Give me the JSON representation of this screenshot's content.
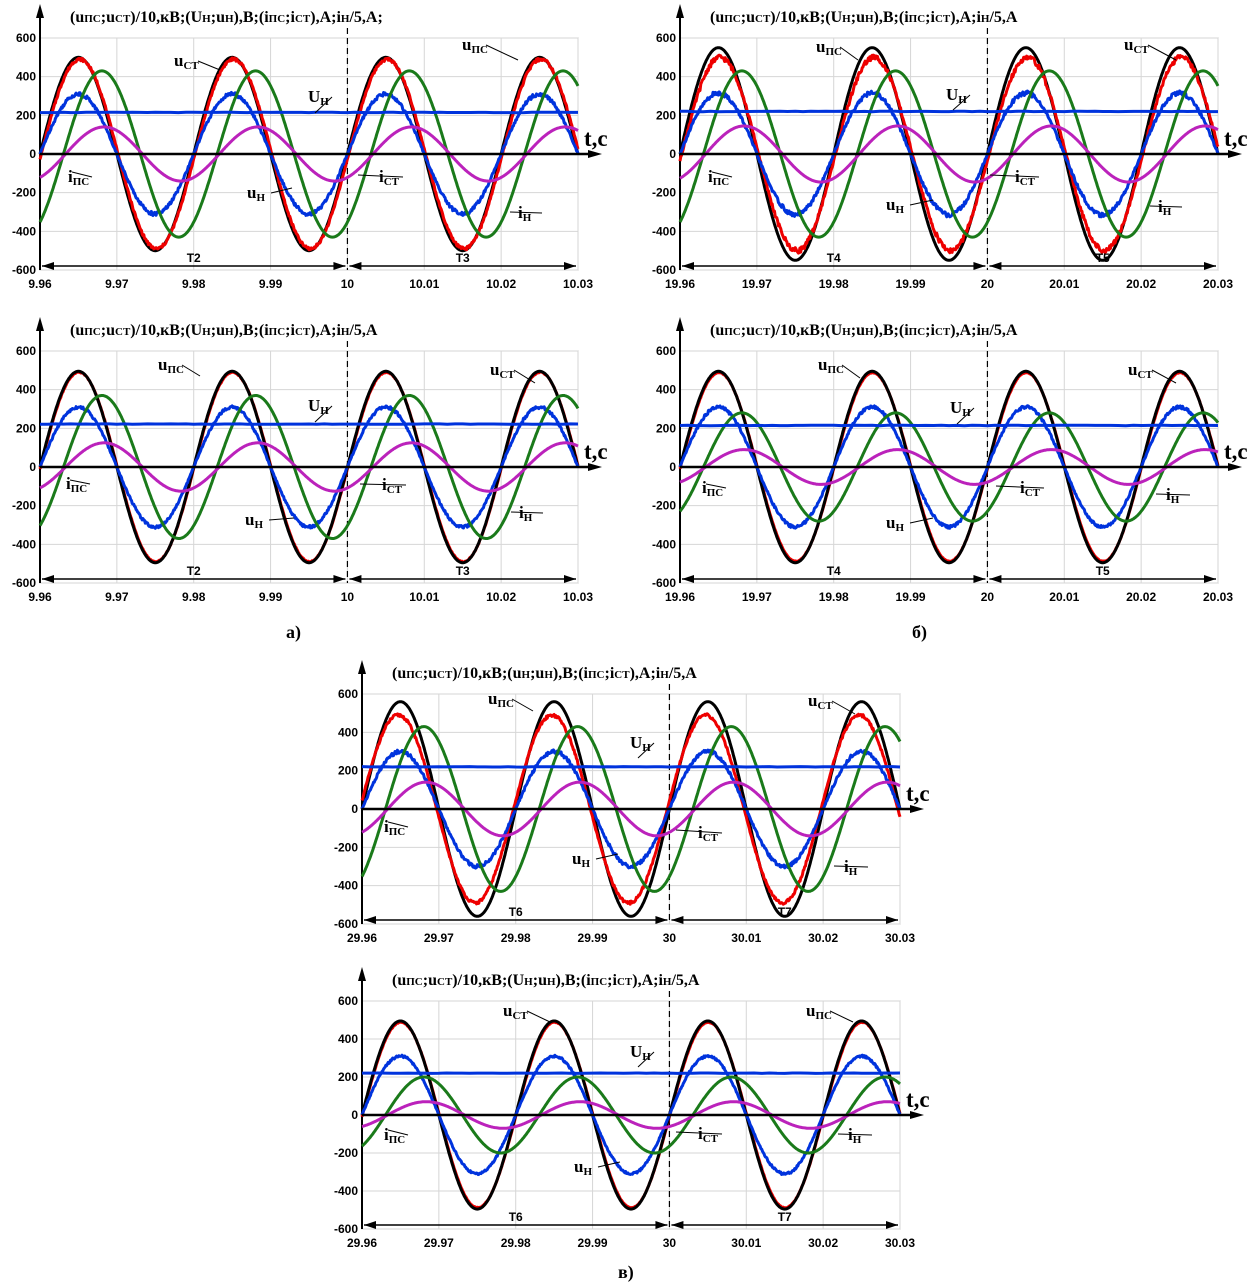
{
  "captions": {
    "a": "а)",
    "b": "б)",
    "c": "в)"
  },
  "chart_data": [
    {
      "type": "line",
      "panel": "a-top",
      "title": "(uПС;uСТ)/10,кВ;(UН;uН),В;(iПС;iСТ),А;iН/5,А;",
      "xlabel": "t,c",
      "xlim": [
        9.96,
        10.03
      ],
      "ylim": [
        -600,
        600
      ],
      "xticks": [
        "9.96",
        "9.97",
        "9.98",
        "9.99",
        "10",
        "10.01",
        "10.02",
        "10.03"
      ],
      "yticks": [
        "-600",
        "-400",
        "-200",
        "0",
        "200",
        "400",
        "600"
      ],
      "marker_x": 10,
      "periods": [
        {
          "label": "T2",
          "from": 9.96,
          "to": 10
        },
        {
          "label": "T3",
          "from": 10,
          "to": 10.03
        }
      ],
      "series": [
        {
          "color": "#000000",
          "amplitude": 500,
          "phase_deg": 0,
          "noise": 0,
          "f": 50,
          "t0": 9.96
        },
        {
          "color": "#ee0000",
          "amplitude": 490,
          "phase_deg": -3,
          "noise": 8,
          "f": 50,
          "t0": 9.96
        },
        {
          "color": "#0033dd",
          "amplitude": 310,
          "phase_deg": 0,
          "noise": 10,
          "f": 50,
          "t0": 9.96
        },
        {
          "color": "#1a7a1a",
          "amplitude": 430,
          "phase_deg": -55,
          "noise": 0,
          "f": 50,
          "t0": 9.96
        },
        {
          "color": "#bb22bb",
          "amplitude": 140,
          "phase_deg": -60,
          "noise": 0,
          "f": 50,
          "t0": 9.96
        },
        {
          "color": "#0033dd",
          "constant": 215
        }
      ],
      "annotations": [
        {
          "base": "u",
          "sub": "СТ"
        },
        {
          "base": "u",
          "sub": "ПС"
        },
        {
          "base": "U",
          "sub": "Н"
        },
        {
          "base": "i",
          "sub": "ПС"
        },
        {
          "base": "i",
          "sub": "СТ"
        },
        {
          "base": "u",
          "sub": "Н"
        },
        {
          "base": "i",
          "sub": "Н"
        }
      ]
    },
    {
      "type": "line",
      "panel": "b-top",
      "title": "(uПС;uСТ)/10,кВ;(UН;uН),В;(iПС;iСТ),А;iН/5,А",
      "xlabel": "t,c",
      "xlim": [
        19.96,
        20.03
      ],
      "ylim": [
        -600,
        600
      ],
      "xticks": [
        "19.96",
        "19.97",
        "19.98",
        "19.99",
        "20",
        "20.01",
        "20.02",
        "20.03"
      ],
      "yticks": [
        "-600",
        "-400",
        "-200",
        "0",
        "200",
        "400",
        "600"
      ],
      "marker_x": 20,
      "periods": [
        {
          "label": "T4",
          "from": 19.96,
          "to": 20
        },
        {
          "label": "T5",
          "from": 20,
          "to": 20.03
        }
      ],
      "series": [
        {
          "color": "#000000",
          "amplitude": 550,
          "phase_deg": 0,
          "noise": 0,
          "f": 50,
          "t0": 19.96
        },
        {
          "color": "#ee0000",
          "amplitude": 500,
          "phase_deg": -4,
          "noise": 14,
          "f": 50,
          "t0": 19.96
        },
        {
          "color": "#0033dd",
          "amplitude": 315,
          "phase_deg": 0,
          "noise": 12,
          "f": 50,
          "t0": 19.96
        },
        {
          "color": "#1a7a1a",
          "amplitude": 430,
          "phase_deg": -55,
          "noise": 0,
          "f": 50,
          "t0": 19.96
        },
        {
          "color": "#bb22bb",
          "amplitude": 145,
          "phase_deg": -60,
          "noise": 0,
          "f": 50,
          "t0": 19.96
        },
        {
          "color": "#0033dd",
          "constant": 220
        }
      ],
      "annotations": [
        {
          "base": "u",
          "sub": "ПС"
        },
        {
          "base": "u",
          "sub": "СТ"
        },
        {
          "base": "U",
          "sub": "Н"
        },
        {
          "base": "i",
          "sub": "ПС"
        },
        {
          "base": "i",
          "sub": "СТ"
        },
        {
          "base": "u",
          "sub": "Н"
        },
        {
          "base": "i",
          "sub": "Н"
        }
      ]
    },
    {
      "type": "line",
      "panel": "a-bottom",
      "title": "(uПС;uСТ)/10,кВ;(UН;uН),В;(iПС;iСТ),А;iН/5,А",
      "xlabel": "t,c",
      "xlim": [
        9.96,
        10.03
      ],
      "ylim": [
        -600,
        600
      ],
      "xticks": [
        "9.96",
        "9.97",
        "9.98",
        "9.99",
        "10",
        "10.01",
        "10.02",
        "10.03"
      ],
      "yticks": [
        "-600",
        "-400",
        "-200",
        "0",
        "200",
        "400",
        "600"
      ],
      "marker_x": 10,
      "periods": [
        {
          "label": "T2",
          "from": 9.96,
          "to": 10
        },
        {
          "label": "T3",
          "from": 10,
          "to": 10.03
        }
      ],
      "series": [
        {
          "color": "#ee0000",
          "amplitude": 490,
          "phase_deg": -1,
          "noise": 3,
          "f": 50,
          "t0": 9.96
        },
        {
          "color": "#000000",
          "amplitude": 495,
          "phase_deg": 0,
          "noise": 0,
          "f": 50,
          "t0": 9.96
        },
        {
          "color": "#0033dd",
          "amplitude": 310,
          "phase_deg": 0,
          "noise": 8,
          "f": 50,
          "t0": 9.96
        },
        {
          "color": "#1a7a1a",
          "amplitude": 370,
          "phase_deg": -55,
          "noise": 0,
          "f": 50,
          "t0": 9.96
        },
        {
          "color": "#bb22bb",
          "amplitude": 125,
          "phase_deg": -60,
          "noise": 0,
          "f": 50,
          "t0": 9.96
        },
        {
          "color": "#0033dd",
          "constant": 222
        }
      ],
      "annotations": [
        {
          "base": "u",
          "sub": "ПС"
        },
        {
          "base": "u",
          "sub": "СТ"
        },
        {
          "base": "U",
          "sub": "Н"
        },
        {
          "base": "i",
          "sub": "ПС"
        },
        {
          "base": "i",
          "sub": "СТ"
        },
        {
          "base": "u",
          "sub": "Н"
        },
        {
          "base": "i",
          "sub": "Н"
        }
      ]
    },
    {
      "type": "line",
      "panel": "b-bottom",
      "title": "(uПС;uСТ)/10,кВ;(UН;uН),В;(iПС;iСТ),А;iН/5,А",
      "xlabel": "t,c",
      "xlim": [
        19.96,
        20.03
      ],
      "ylim": [
        -600,
        600
      ],
      "xticks": [
        "19.96",
        "19.97",
        "19.98",
        "19.99",
        "20",
        "20.01",
        "20.02",
        "20.03"
      ],
      "yticks": [
        "-600",
        "-400",
        "-200",
        "0",
        "200",
        "400",
        "600"
      ],
      "marker_x": 20,
      "periods": [
        {
          "label": "T4",
          "from": 19.96,
          "to": 20
        },
        {
          "label": "T5",
          "from": 20,
          "to": 20.03
        }
      ],
      "series": [
        {
          "color": "#ee0000",
          "amplitude": 488,
          "phase_deg": -1,
          "noise": 2,
          "f": 50,
          "t0": 19.96
        },
        {
          "color": "#000000",
          "amplitude": 495,
          "phase_deg": 0,
          "noise": 0,
          "f": 50,
          "t0": 19.96
        },
        {
          "color": "#0033dd",
          "amplitude": 310,
          "phase_deg": 0,
          "noise": 8,
          "f": 50,
          "t0": 19.96
        },
        {
          "color": "#1a7a1a",
          "amplitude": 280,
          "phase_deg": -55,
          "noise": 0,
          "f": 50,
          "t0": 19.96
        },
        {
          "color": "#bb22bb",
          "amplitude": 90,
          "phase_deg": -60,
          "noise": 0,
          "f": 50,
          "t0": 19.96
        },
        {
          "color": "#0033dd",
          "constant": 215
        }
      ],
      "annotations": [
        {
          "base": "u",
          "sub": "ПС"
        },
        {
          "base": "u",
          "sub": "СТ"
        },
        {
          "base": "U",
          "sub": "Н"
        },
        {
          "base": "i",
          "sub": "ПС"
        },
        {
          "base": "i",
          "sub": "СТ"
        },
        {
          "base": "u",
          "sub": "Н"
        },
        {
          "base": "i",
          "sub": "Н"
        }
      ]
    },
    {
      "type": "line",
      "panel": "c-top",
      "title": "(uПС;uСТ)/10,кВ;(uН;uН),В;(iПС;iСТ),А;iН/5,А",
      "xlabel": "t,c",
      "xlim": [
        29.96,
        30.03
      ],
      "ylim": [
        -600,
        600
      ],
      "xticks": [
        "29.96",
        "29.97",
        "29.98",
        "29.99",
        "30",
        "30.01",
        "30.02",
        "30.03"
      ],
      "yticks": [
        "-600",
        "-400",
        "-200",
        "0",
        "200",
        "400",
        "600"
      ],
      "marker_x": 30,
      "periods": [
        {
          "label": "T6",
          "from": 29.96,
          "to": 30
        },
        {
          "label": "T7",
          "from": 30,
          "to": 30.03
        }
      ],
      "series": [
        {
          "color": "#000000",
          "amplitude": 560,
          "phase_deg": 0,
          "noise": 0,
          "f": 50,
          "t0": 29.96
        },
        {
          "color": "#ee0000",
          "amplitude": 490,
          "phase_deg": 5,
          "noise": 8,
          "f": 50,
          "t0": 29.96
        },
        {
          "color": "#0033dd",
          "amplitude": 300,
          "phase_deg": 0,
          "noise": 10,
          "f": 50,
          "t0": 29.96
        },
        {
          "color": "#1a7a1a",
          "amplitude": 430,
          "phase_deg": -55,
          "noise": 0,
          "f": 50,
          "t0": 29.96
        },
        {
          "color": "#bb22bb",
          "amplitude": 140,
          "phase_deg": -60,
          "noise": 0,
          "f": 50,
          "t0": 29.96
        },
        {
          "color": "#0033dd",
          "constant": 220
        }
      ],
      "annotations": [
        {
          "base": "u",
          "sub": "ПС"
        },
        {
          "base": "u",
          "sub": "СТ"
        },
        {
          "base": "U",
          "sub": "Н"
        },
        {
          "base": "i",
          "sub": "ПС"
        },
        {
          "base": "i",
          "sub": "СТ"
        },
        {
          "base": "u",
          "sub": "Н"
        },
        {
          "base": "i",
          "sub": "Н"
        }
      ]
    },
    {
      "type": "line",
      "panel": "c-bottom",
      "title": "(uПС;uСТ)/10,кВ;(UН;uН),В;(iПС;iСТ),А;iН/5,А",
      "xlabel": "t,c",
      "xlim": [
        29.96,
        30.03
      ],
      "ylim": [
        -600,
        600
      ],
      "xticks": [
        "29.96",
        "29.97",
        "29.98",
        "29.99",
        "30",
        "30.01",
        "30.02",
        "30.03"
      ],
      "yticks": [
        "-600",
        "-400",
        "-200",
        "0",
        "200",
        "400",
        "600"
      ],
      "marker_x": 30,
      "periods": [
        {
          "label": "T6",
          "from": 29.96,
          "to": 30
        },
        {
          "label": "T7",
          "from": 30,
          "to": 30.03
        }
      ],
      "series": [
        {
          "color": "#ee0000",
          "amplitude": 488,
          "phase_deg": -1,
          "noise": 2,
          "f": 50,
          "t0": 29.96
        },
        {
          "color": "#000000",
          "amplitude": 495,
          "phase_deg": 0,
          "noise": 0,
          "f": 50,
          "t0": 29.96
        },
        {
          "color": "#0033dd",
          "amplitude": 310,
          "phase_deg": 0,
          "noise": 6,
          "f": 50,
          "t0": 29.96
        },
        {
          "color": "#1a7a1a",
          "amplitude": 200,
          "phase_deg": -55,
          "noise": 0,
          "f": 50,
          "t0": 29.96
        },
        {
          "color": "#bb22bb",
          "amplitude": 70,
          "phase_deg": -60,
          "noise": 0,
          "f": 50,
          "t0": 29.96
        },
        {
          "color": "#0033dd",
          "constant": 220
        }
      ],
      "annotations": [
        {
          "base": "u",
          "sub": "СТ"
        },
        {
          "base": "u",
          "sub": "ПС"
        },
        {
          "base": "U",
          "sub": "Н"
        },
        {
          "base": "i",
          "sub": "ПС"
        },
        {
          "base": "i",
          "sub": "СТ"
        },
        {
          "base": "u",
          "sub": "Н"
        },
        {
          "base": "i",
          "sub": "Н"
        }
      ]
    }
  ]
}
